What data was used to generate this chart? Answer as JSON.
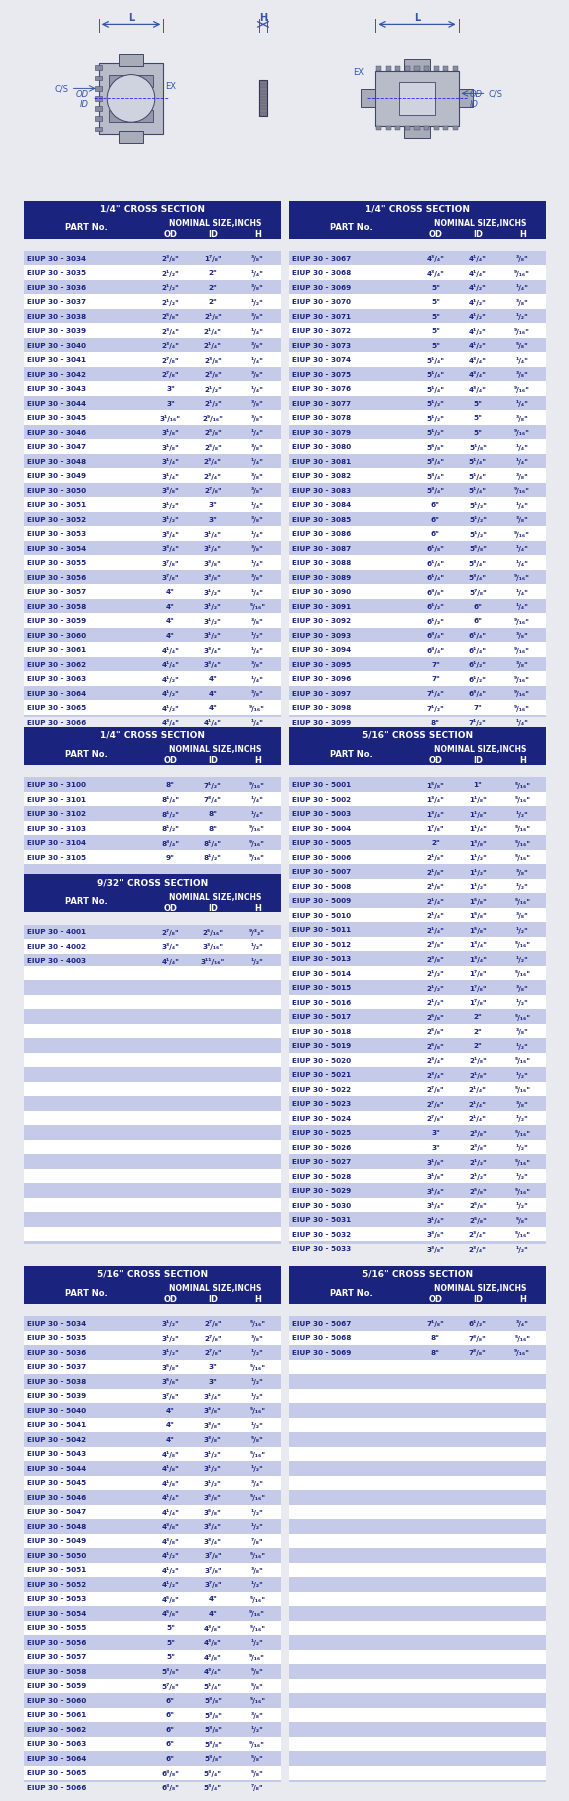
{
  "table_bg_header": "#1a237e",
  "table_bg_row_alt": "#c5cae9",
  "table_bg_row_normal": "#ffffff",
  "table_text_color": "#ffffff",
  "table_data_color": "#1a237e",
  "fig_bg": "#e8eaf0",
  "sec1_left_label": "1/4\" CROSS SECTION",
  "sec1_right_label": "1/4\" CROSS SECTION",
  "sec2_left_label": "1/4\" CROSS SECTION",
  "sec2_right_label": "5/16\" CROSS SECTION",
  "sec3_left_label": "9/32\" CROSS SECTION",
  "sec4_left_label": "5/16\" CROSS SECTION",
  "sec4_right_label": "5/16\" CROSS SECTION",
  "sec1_left": [
    [
      "EIUP 30 - 3034",
      "2³/₈\"",
      "1⁷/₈\"",
      "³/₈\""
    ],
    [
      "EIUP 30 - 3035",
      "2¹/₂\"",
      "2\"",
      "¹/₄\""
    ],
    [
      "EIUP 30 - 3036",
      "2¹/₂\"",
      "2\"",
      "³/₈\""
    ],
    [
      "EIUP 30 - 3037",
      "2¹/₂\"",
      "2\"",
      "¹/₂\""
    ],
    [
      "EIUP 30 - 3038",
      "2⁵/₈\"",
      "2¹/₈\"",
      "³/₈\""
    ],
    [
      "EIUP 30 - 3039",
      "2³/₄\"",
      "2¹/₄\"",
      "¹/₄\""
    ],
    [
      "EIUP 30 - 3040",
      "2³/₄\"",
      "2¹/₄\"",
      "³/₈\""
    ],
    [
      "EIUP 30 - 3041",
      "2⁷/₈\"",
      "2³/₈\"",
      "¹/₄\""
    ],
    [
      "EIUP 30 - 3042",
      "2⁷/₈\"",
      "2³/₈\"",
      "³/₈\""
    ],
    [
      "EIUP 30 - 3043",
      "3\"",
      "2¹/₂\"",
      "¹/₄\""
    ],
    [
      "EIUP 30 - 3044",
      "3\"",
      "2¹/₂\"",
      "³/₈\""
    ],
    [
      "EIUP 30 - 3045",
      "3¹/₁₆\"",
      "2⁹/₁₆\"",
      "³/₈\""
    ],
    [
      "EIUP 30 - 3046",
      "3¹/₈\"",
      "2⁵/₈\"",
      "¹/₄\""
    ],
    [
      "EIUP 30 - 3047",
      "3¹/₈\"",
      "2⁵/₈\"",
      "³/₈\""
    ],
    [
      "EIUP 30 - 3048",
      "3¹/₄\"",
      "2³/₄\"",
      "¹/₄\""
    ],
    [
      "EIUP 30 - 3049",
      "3¹/₄\"",
      "2³/₄\"",
      "³/₈\""
    ],
    [
      "EIUP 30 - 3050",
      "3³/₈\"",
      "2⁷/₈\"",
      "³/₈\""
    ],
    [
      "EIUP 30 - 3051",
      "3¹/₂\"",
      "3\"",
      "¹/₄\""
    ],
    [
      "EIUP 30 - 3052",
      "3¹/₂\"",
      "3\"",
      "³/₈\""
    ],
    [
      "EIUP 30 - 3053",
      "3³/₄\"",
      "3¹/₄\"",
      "¹/₄\""
    ],
    [
      "EIUP 30 - 3054",
      "3³/₄\"",
      "3¹/₄\"",
      "³/₈\""
    ],
    [
      "EIUP 30 - 3055",
      "3⁷/₈\"",
      "3³/₈\"",
      "¹/₄\""
    ],
    [
      "EIUP 30 - 3056",
      "3⁷/₈\"",
      "3³/₈\"",
      "³/₈\""
    ],
    [
      "EIUP 30 - 3057",
      "4\"",
      "3¹/₂\"",
      "¹/₄\""
    ],
    [
      "EIUP 30 - 3058",
      "4\"",
      "3¹/₂\"",
      "⁵/₁₆\""
    ],
    [
      "EIUP 30 - 3059",
      "4\"",
      "3¹/₂\"",
      "³/₈\""
    ],
    [
      "EIUP 30 - 3060",
      "4\"",
      "3¹/₂\"",
      "¹/₂\""
    ],
    [
      "EIUP 30 - 3061",
      "4¹/₄\"",
      "3³/₄\"",
      "¹/₄\""
    ],
    [
      "EIUP 30 - 3062",
      "4¹/₄\"",
      "3³/₄\"",
      "³/₈\""
    ],
    [
      "EIUP 30 - 3063",
      "4¹/₂\"",
      "4\"",
      "¹/₄\""
    ],
    [
      "EIUP 30 - 3064",
      "4¹/₂\"",
      "4\"",
      "³/₈\""
    ],
    [
      "EIUP 30 - 3065",
      "4¹/₂\"",
      "4\"",
      "⁹/₁₆\""
    ],
    [
      "EIUP 30 - 3066",
      "4³/₄\"",
      "4¹/₄\"",
      "¹/₄\""
    ]
  ],
  "sec1_right": [
    [
      "EIUP 30 - 3067",
      "4³/₄\"",
      "4¹/₄\"",
      "³/₈\""
    ],
    [
      "EIUP 30 - 3068",
      "4³/₄\"",
      "4¹/₄\"",
      "⁹/₁₆\""
    ],
    [
      "EIUP 30 - 3069",
      "5\"",
      "4¹/₂\"",
      "¹/₄\""
    ],
    [
      "EIUP 30 - 3070",
      "5\"",
      "4¹/₂\"",
      "³/₈\""
    ],
    [
      "EIUP 30 - 3071",
      "5\"",
      "4¹/₂\"",
      "¹/₂\""
    ],
    [
      "EIUP 30 - 3072",
      "5\"",
      "4¹/₂\"",
      "⁹/₁₆\""
    ],
    [
      "EIUP 30 - 3073",
      "5\"",
      "4¹/₂\"",
      "⁵/₈\""
    ],
    [
      "EIUP 30 - 3074",
      "5¹/₄\"",
      "4³/₄\"",
      "¹/₄\""
    ],
    [
      "EIUP 30 - 3075",
      "5¹/₄\"",
      "4³/₄\"",
      "³/₈\""
    ],
    [
      "EIUP 30 - 3076",
      "5¹/₄\"",
      "4³/₄\"",
      "⁹/₁₆\""
    ],
    [
      "EIUP 30 - 3077",
      "5¹/₂\"",
      "5\"",
      "¹/₄\""
    ],
    [
      "EIUP 30 - 3078",
      "5¹/₂\"",
      "5\"",
      "³/₈\""
    ],
    [
      "EIUP 30 - 3079",
      "5¹/₂\"",
      "5\"",
      "⁹/₁₆\""
    ],
    [
      "EIUP 30 - 3080",
      "5⁵/₈\"",
      "5¹/₈\"",
      "¹/₄\""
    ],
    [
      "EIUP 30 - 3081",
      "5³/₄\"",
      "5¹/₄\"",
      "¹/₄\""
    ],
    [
      "EIUP 30 - 3082",
      "5³/₄\"",
      "5¹/₄\"",
      "³/₈\""
    ],
    [
      "EIUP 30 - 3083",
      "5³/₄\"",
      "5¹/₄\"",
      "⁹/₁₆\""
    ],
    [
      "EIUP 30 - 3084",
      "6\"",
      "5¹/₂\"",
      "¹/₄\""
    ],
    [
      "EIUP 30 - 3085",
      "6\"",
      "5¹/₂\"",
      "³/₈\""
    ],
    [
      "EIUP 30 - 3086",
      "6\"",
      "5¹/₂\"",
      "⁹/₁₆\""
    ],
    [
      "EIUP 30 - 3087",
      "6¹/₈\"",
      "5⁵/₈\"",
      "¹/₄\""
    ],
    [
      "EIUP 30 - 3088",
      "6¹/₄\"",
      "5³/₄\"",
      "¹/₄\""
    ],
    [
      "EIUP 30 - 3089",
      "6¹/₄\"",
      "5³/₄\"",
      "⁹/₁₆\""
    ],
    [
      "EIUP 30 - 3090",
      "6³/₈\"",
      "5⁷/₈\"",
      "¹/₄\""
    ],
    [
      "EIUP 30 - 3091",
      "6¹/₂\"",
      "6\"",
      "¹/₄\""
    ],
    [
      "EIUP 30 - 3092",
      "6¹/₂\"",
      "6\"",
      "⁹/₁₆\""
    ],
    [
      "EIUP 30 - 3093",
      "6³/₄\"",
      "6¹/₄\"",
      "³/₈\""
    ],
    [
      "EIUP 30 - 3094",
      "6³/₄\"",
      "6¹/₄\"",
      "⁹/₁₆\""
    ],
    [
      "EIUP 30 - 3095",
      "7\"",
      "6¹/₂\"",
      "³/₈\""
    ],
    [
      "EIUP 30 - 3096",
      "7\"",
      "6¹/₂\"",
      "⁹/₁₆\""
    ],
    [
      "EIUP 30 - 3097",
      "7¹/₄\"",
      "6³/₄\"",
      "⁹/₁₆\""
    ],
    [
      "EIUP 30 - 3098",
      "7¹/₂\"",
      "7\"",
      "⁹/₁₆\""
    ],
    [
      "EIUP 30 - 3099",
      "8\"",
      "7¹/₂\"",
      "¹/₄\""
    ]
  ],
  "sec2_left": [
    [
      "EIUP 30 - 3100",
      "8\"",
      "7¹/₂\"",
      "⁹/₁₆\""
    ],
    [
      "EIUP 30 - 3101",
      "8¹/₄\"",
      "7³/₄\"",
      "¹/₄\""
    ],
    [
      "EIUP 30 - 3102",
      "8¹/₂\"",
      "8\"",
      "¹/₄\""
    ],
    [
      "EIUP 30 - 3103",
      "8¹/₂\"",
      "8\"",
      "⁹/₁₆\""
    ],
    [
      "EIUP 30 - 3104",
      "8³/₄\"",
      "8¹/₄\"",
      "⁹/₁₆\""
    ],
    [
      "EIUP 30 - 3105",
      "9\"",
      "8¹/₂\"",
      "⁹/₁₆\""
    ]
  ],
  "sec2_right": [
    [
      "EIUP 30 - 5001",
      "1⁵/₈\"",
      "1\"",
      "⁵/₁₆\""
    ],
    [
      "EIUP 30 - 5002",
      "1³/₄\"",
      "1¹/₈\"",
      "⁵/₁₆\""
    ],
    [
      "EIUP 30 - 5003",
      "1³/₄\"",
      "1¹/₈\"",
      "¹/₂\""
    ],
    [
      "EIUP 30 - 5004",
      "1⁷/₈\"",
      "1¹/₄\"",
      "⁵/₁₆\""
    ],
    [
      "EIUP 30 - 5005",
      "2\"",
      "1³/₈\"",
      "⁵/₁₆\""
    ],
    [
      "EIUP 30 - 5006",
      "2¹/₈\"",
      "1¹/₂\"",
      "⁵/₁₆\""
    ],
    [
      "EIUP 30 - 5007",
      "2¹/₈\"",
      "1¹/₂\"",
      "³/₈\""
    ],
    [
      "EIUP 30 - 5008",
      "2¹/₈\"",
      "1¹/₂\"",
      "¹/₂\""
    ],
    [
      "EIUP 30 - 5009",
      "2¹/₄\"",
      "1⁵/₈\"",
      "⁵/₁₆\""
    ],
    [
      "EIUP 30 - 5010",
      "2¹/₄\"",
      "1⁵/₈\"",
      "³/₈\""
    ],
    [
      "EIUP 30 - 5011",
      "2¹/₄\"",
      "1⁵/₈\"",
      "¹/₂\""
    ],
    [
      "EIUP 30 - 5012",
      "2³/₈\"",
      "1³/₄\"",
      "⁵/₁₆\""
    ],
    [
      "EIUP 30 - 5013",
      "2³/₈\"",
      "1³/₄\"",
      "¹/₂\""
    ],
    [
      "EIUP 30 - 5014",
      "2¹/₂\"",
      "1⁷/₈\"",
      "⁵/₁₆\""
    ],
    [
      "EIUP 30 - 5015",
      "2¹/₂\"",
      "1⁷/₈\"",
      "³/₈\""
    ],
    [
      "EIUP 30 - 5016",
      "2¹/₂\"",
      "1⁷/₈\"",
      "¹/₂\""
    ],
    [
      "EIUP 30 - 5017",
      "2⁵/₈\"",
      "2\"",
      "⁵/₁₆\""
    ],
    [
      "EIUP 30 - 5018",
      "2⁵/₈\"",
      "2\"",
      "³/₈\""
    ],
    [
      "EIUP 30 - 5019",
      "2⁵/₈\"",
      "2\"",
      "¹/₂\""
    ],
    [
      "EIUP 30 - 5020",
      "2³/₄\"",
      "2¹/₈\"",
      "⁵/₁₆\""
    ],
    [
      "EIUP 30 - 5021",
      "2³/₄\"",
      "2¹/₈\"",
      "¹/₂\""
    ],
    [
      "EIUP 30 - 5022",
      "2⁷/₈\"",
      "2¹/₄\"",
      "⁵/₁₆\""
    ],
    [
      "EIUP 30 - 5023",
      "2⁷/₈\"",
      "2¹/₄\"",
      "³/₈\""
    ],
    [
      "EIUP 30 - 5024",
      "2⁷/₈\"",
      "2¹/₄\"",
      "¹/₂\""
    ],
    [
      "EIUP 30 - 5025",
      "3\"",
      "2³/₈\"",
      "⁵/₁₆\""
    ],
    [
      "EIUP 30 - 5026",
      "3\"",
      "2³/₈\"",
      "¹/₂\""
    ],
    [
      "EIUP 30 - 5027",
      "3¹/₈\"",
      "2¹/₂\"",
      "⁵/₁₆\""
    ],
    [
      "EIUP 30 - 5028",
      "3¹/₈\"",
      "2¹/₂\"",
      "¹/₂\""
    ],
    [
      "EIUP 30 - 5029",
      "3¹/₄\"",
      "2⁵/₈\"",
      "⁵/₁₆\""
    ],
    [
      "EIUP 30 - 5030",
      "3¹/₄\"",
      "2⁵/₈\"",
      "¹/₂\""
    ],
    [
      "EIUP 30 - 5031",
      "3¹/₄\"",
      "2⁵/₈\"",
      "⁵/₈\""
    ],
    [
      "EIUP 30 - 5032",
      "3³/₈\"",
      "2³/₄\"",
      "⁵/₁₆\""
    ],
    [
      "EIUP 30 - 5033",
      "3³/₈\"",
      "2³/₄\"",
      "¹/₂\""
    ]
  ],
  "sec3_left": [
    [
      "EIUP 30 - 4001",
      "2⁷/₈\"",
      "2⁵/₁₆\"",
      "⁹/³₂\""
    ],
    [
      "EIUP 30 - 4002",
      "3³/₄\"",
      "3³/₁₆\"",
      "¹/₂\""
    ],
    [
      "EIUP 30 - 4003",
      "4¹/₄\"",
      "3¹¹/₁₆\"",
      "¹/₂\""
    ]
  ],
  "sec4_left": [
    [
      "EIUP 30 - 5034",
      "3¹/₂\"",
      "2⁷/₈\"",
      "⁵/₁₆\""
    ],
    [
      "EIUP 30 - 5035",
      "3¹/₂\"",
      "2⁷/₈\"",
      "³/₈\""
    ],
    [
      "EIUP 30 - 5036",
      "3¹/₂\"",
      "2⁷/₈\"",
      "¹/₂\""
    ],
    [
      "EIUP 30 - 5037",
      "3⁵/₈\"",
      "3\"",
      "⁵/₁₆\""
    ],
    [
      "EIUP 30 - 5038",
      "3⁵/₈\"",
      "3\"",
      "¹/₂\""
    ],
    [
      "EIUP 30 - 5039",
      "3⁷/₈\"",
      "3¹/₄\"",
      "¹/₂\""
    ],
    [
      "EIUP 30 - 5040",
      "4\"",
      "3³/₈\"",
      "⁵/₁₆\""
    ],
    [
      "EIUP 30 - 5041",
      "4\"",
      "3³/₈\"",
      "¹/₂\""
    ],
    [
      "EIUP 30 - 5042",
      "4\"",
      "3³/₈\"",
      "⁵/₈\""
    ],
    [
      "EIUP 30 - 5043",
      "4¹/₈\"",
      "3¹/₂\"",
      "⁵/₁₆\""
    ],
    [
      "EIUP 30 - 5044",
      "4¹/₈\"",
      "3¹/₂\"",
      "¹/₂\""
    ],
    [
      "EIUP 30 - 5045",
      "4¹/₈\"",
      "3¹/₂\"",
      "³/₄\""
    ],
    [
      "EIUP 30 - 5046",
      "4¹/₄\"",
      "3⁵/₈\"",
      "⁵/₁₆\""
    ],
    [
      "EIUP 30 - 5047",
      "4¹/₄\"",
      "3⁵/₈\"",
      "¹/₂\""
    ],
    [
      "EIUP 30 - 5048",
      "4³/₈\"",
      "3³/₄\"",
      "¹/₂\""
    ],
    [
      "EIUP 30 - 5049",
      "4³/₈\"",
      "3³/₄\"",
      "⁷/₈\""
    ],
    [
      "EIUP 30 - 5050",
      "4¹/₂\"",
      "3⁷/₈\"",
      "⁵/₁₆\""
    ],
    [
      "EIUP 30 - 5051",
      "4¹/₂\"",
      "3⁷/₈\"",
      "³/₈\""
    ],
    [
      "EIUP 30 - 5052",
      "4¹/₂\"",
      "3⁷/₈\"",
      "¹/₂\""
    ],
    [
      "EIUP 30 - 5053",
      "4⁵/₈\"",
      "4\"",
      "⁵/₁₆\""
    ],
    [
      "EIUP 30 - 5054",
      "4⁵/₈\"",
      "4\"",
      "⁹/₁₆\""
    ],
    [
      "EIUP 30 - 5055",
      "5\"",
      "4³/₈\"",
      "⁵/₁₆\""
    ],
    [
      "EIUP 30 - 5056",
      "5\"",
      "4³/₈\"",
      "¹/₂\""
    ],
    [
      "EIUP 30 - 5057",
      "5\"",
      "4³/₈\"",
      "⁹/₁₆\""
    ],
    [
      "EIUP 30 - 5058",
      "5³/₈\"",
      "4³/₄\"",
      "⁵/₈\""
    ],
    [
      "EIUP 30 - 5059",
      "5⁷/₈\"",
      "5¹/₄\"",
      "⁵/₈\""
    ],
    [
      "EIUP 30 - 5060",
      "6\"",
      "5³/₈\"",
      "⁵/₁₆\""
    ],
    [
      "EIUP 30 - 5061",
      "6\"",
      "5³/₈\"",
      "³/₈\""
    ],
    [
      "EIUP 30 - 5062",
      "6\"",
      "5³/₈\"",
      "¹/₂\""
    ],
    [
      "EIUP 30 - 5063",
      "6\"",
      "5³/₈\"",
      "⁹/₁₆\""
    ],
    [
      "EIUP 30 - 5064",
      "6\"",
      "5³/₈\"",
      "⁵/₈\""
    ],
    [
      "EIUP 30 - 5065",
      "6³/₈\"",
      "5³/₄\"",
      "⁵/₈\""
    ],
    [
      "EIUP 30 - 5066",
      "6³/₈\"",
      "5³/₄\"",
      "⁷/₈\""
    ]
  ],
  "sec4_right": [
    [
      "EIUP 30 - 5067",
      "7¹/₈\"",
      "6¹/₂\"",
      "³/₄\""
    ],
    [
      "EIUP 30 - 5068",
      "8\"",
      "7³/₈\"",
      "⁵/₁₆\""
    ],
    [
      "EIUP 30 - 5069",
      "8\"",
      "7³/₈\"",
      "⁹/₁₆\""
    ]
  ]
}
